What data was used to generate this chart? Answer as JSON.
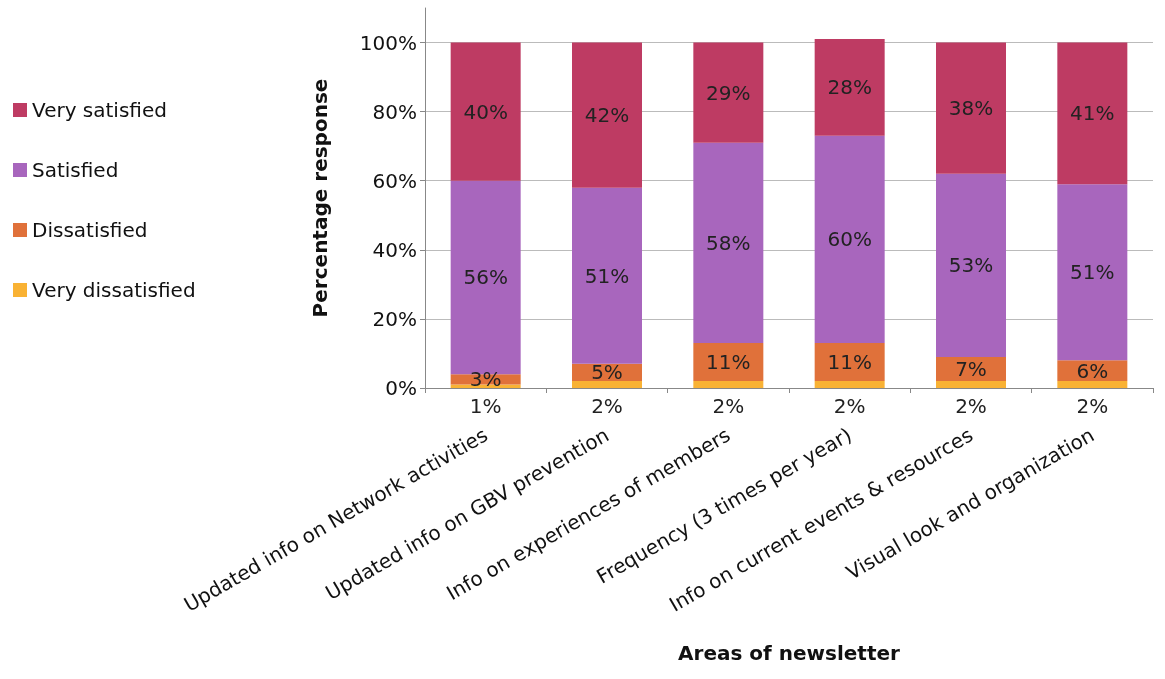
{
  "chart_data": {
    "type": "bar",
    "stacked": true,
    "xlabel": "Areas of newsletter",
    "ylabel": "Percentage response",
    "categories": [
      "Updated info on Network activities",
      "Updated info on GBV prevention",
      "Info on experiences of members",
      "Frequency (3 times per year)",
      "Info on current events & resources",
      "Visual look and organization"
    ],
    "series": [
      {
        "name": "Very dissatisfied",
        "color": "#f9b234",
        "values": [
          1,
          2,
          2,
          2,
          2,
          2
        ],
        "value_labels": [
          "1%",
          "2%",
          "2%",
          "2%",
          "2%",
          "2%"
        ]
      },
      {
        "name": "Dissatisfied",
        "color": "#e0713a",
        "values": [
          3,
          5,
          11,
          11,
          7,
          6
        ],
        "value_labels": [
          "3%",
          "5%",
          "11%",
          "11%",
          "7%",
          "6%"
        ]
      },
      {
        "name": "Satisfied",
        "color": "#a866bd",
        "values": [
          56,
          51,
          58,
          60,
          53,
          51
        ],
        "value_labels": [
          "56%",
          "51%",
          "58%",
          "60%",
          "53%",
          "51%"
        ]
      },
      {
        "name": "Very satisfied",
        "color": "#be3b63",
        "values": [
          40,
          42,
          29,
          28,
          38,
          41
        ],
        "value_labels": [
          "40%",
          "42%",
          "29%",
          "28%",
          "38%",
          "41%"
        ]
      }
    ],
    "ylim": [
      0,
      110
    ],
    "yticks": [
      {
        "value": 0,
        "label": "0%"
      },
      {
        "value": 20,
        "label": "20%"
      },
      {
        "value": 40,
        "label": "40%"
      },
      {
        "value": 60,
        "label": "60%"
      },
      {
        "value": 80,
        "label": "80%"
      },
      {
        "value": 100,
        "label": "100%"
      }
    ],
    "grid": "y",
    "legend": "left"
  }
}
